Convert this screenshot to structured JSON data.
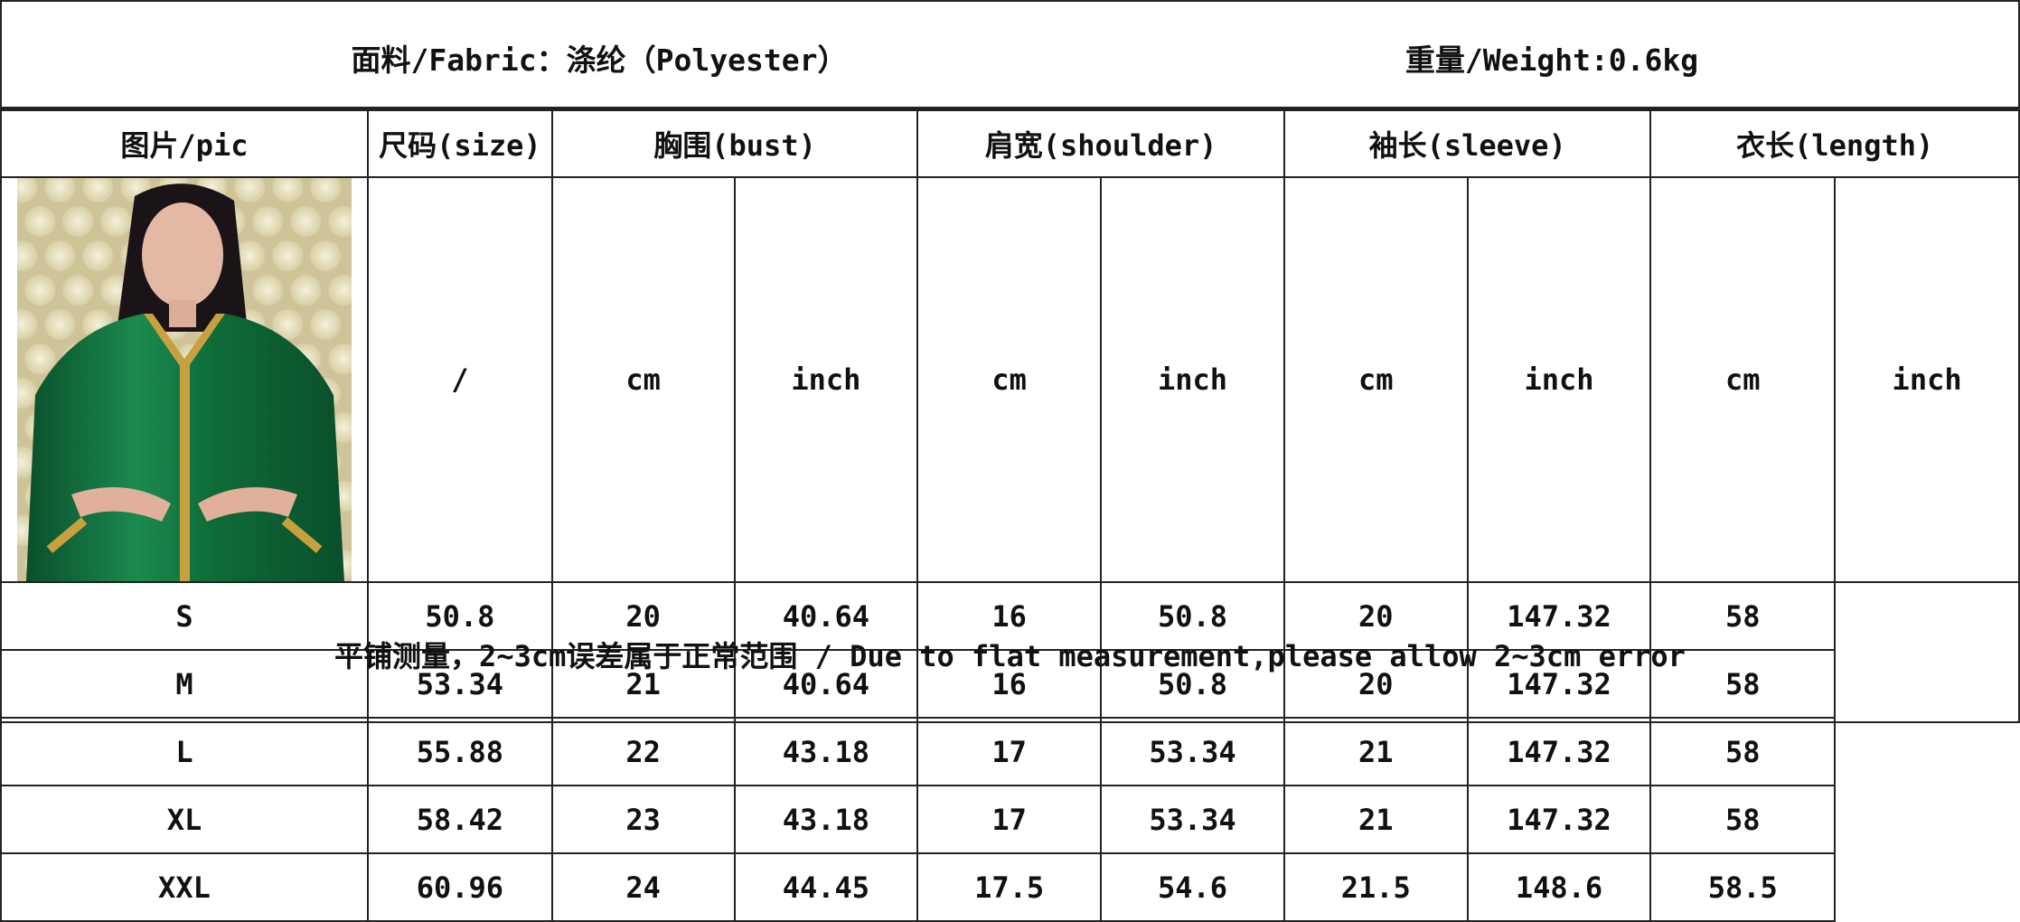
{
  "fabric": "面料/Fabric：涤纶（Polyester）",
  "weight": "重量/Weight:0.6kg",
  "headers": {
    "pic": "图片/pic",
    "size": "尺码(size)",
    "bust": "胸围(bust)",
    "shoulder": "肩宽(shoulder)",
    "sleeve": "袖长(sleeve)",
    "length": "衣长(length)"
  },
  "units": [
    "/",
    "cm",
    "inch",
    "cm",
    "inch",
    "cm",
    "inch",
    "cm",
    "inch"
  ],
  "rows": [
    [
      "S",
      "50.8",
      "20",
      "40.64",
      "16",
      "50.8",
      "20",
      "147.32",
      "58"
    ],
    [
      "M",
      "53.34",
      "21",
      "40.64",
      "16",
      "50.8",
      "20",
      "147.32",
      "58"
    ],
    [
      "L",
      "55.88",
      "22",
      "43.18",
      "17",
      "53.34",
      "21",
      "147.32",
      "58"
    ],
    [
      "XL",
      "58.42",
      "23",
      "43.18",
      "17",
      "53.34",
      "21",
      "147.32",
      "58"
    ],
    [
      "XXL",
      "60.96",
      "24",
      "44.45",
      "17.5",
      "54.6",
      "21.5",
      "148.6",
      "58.5"
    ]
  ],
  "note": "平铺测量，2~3cm误差属于正常范围 / Due to flat measurement,please allow 2~3cm error",
  "colors": {
    "dress": "#0f6b3a",
    "trim": "#c9a040",
    "border": "#222222"
  }
}
